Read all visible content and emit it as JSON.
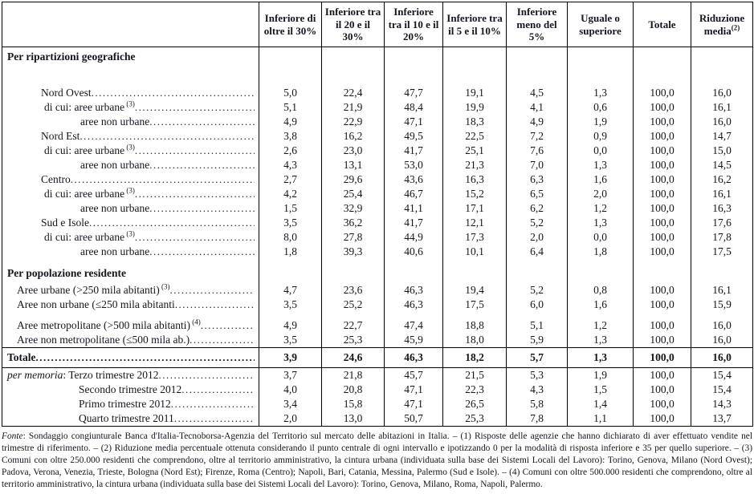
{
  "table": {
    "columns": [
      {
        "label": "Inferiore di oltre il 30%",
        "sup": ""
      },
      {
        "label": "Inferiore tra il 20 e il 30%",
        "sup": ""
      },
      {
        "label": "Inferiore tra il 10 e il 20%",
        "sup": ""
      },
      {
        "label": "Inferiore tra il 5 e il 10%",
        "sup": ""
      },
      {
        "label": "Inferiore meno del 5%",
        "sup": ""
      },
      {
        "label": "Uguale o superiore",
        "sup": ""
      },
      {
        "label": "Totale",
        "sup": ""
      },
      {
        "label": "Riduzione media",
        "sup": "(2)"
      }
    ],
    "rows": [
      {
        "variant": "section",
        "pad_bottom": true,
        "label": "Per ripartizioni geografiche",
        "indent": 6,
        "leader": false,
        "values": []
      },
      {
        "variant": "data",
        "label": "Nord Ovest",
        "indent": 48,
        "leader": true,
        "values": [
          "5,0",
          "22,4",
          "47,7",
          "19,1",
          "4,5",
          "1,3",
          "100,0",
          "16,0"
        ]
      },
      {
        "variant": "data",
        "label": "di cui: aree urbane",
        "sup": "(3)",
        "indent": 52,
        "leader": true,
        "values": [
          "5,1",
          "21,9",
          "48,4",
          "19,9",
          "4,1",
          "0,6",
          "100,0",
          "16,1"
        ]
      },
      {
        "variant": "data",
        "label": "aree non urbane",
        "indent": 97,
        "leader": true,
        "values": [
          "4,9",
          "22,9",
          "47,1",
          "18,3",
          "4,9",
          "1,9",
          "100,0",
          "16,0"
        ]
      },
      {
        "variant": "data",
        "label": "Nord Est",
        "indent": 48,
        "leader": true,
        "values": [
          "3,8",
          "16,2",
          "49,5",
          "22,5",
          "7,2",
          "0,9",
          "100,0",
          "14,7"
        ]
      },
      {
        "variant": "data",
        "label": "di cui: aree urbane",
        "sup": "(3)",
        "indent": 52,
        "leader": true,
        "values": [
          "2,6",
          "23,0",
          "41,7",
          "25,1",
          "7,6",
          "0,0",
          "100,0",
          "15,0"
        ]
      },
      {
        "variant": "data",
        "label": "aree non urbane",
        "indent": 97,
        "leader": true,
        "values": [
          "4,3",
          "13,1",
          "53,0",
          "21,3",
          "7,0",
          "1,3",
          "100,0",
          "14,5"
        ]
      },
      {
        "variant": "data",
        "label": "Centro",
        "indent": 48,
        "leader": true,
        "values": [
          "2,7",
          "29,6",
          "43,6",
          "16,3",
          "6,3",
          "1,6",
          "100,0",
          "16,2"
        ]
      },
      {
        "variant": "data",
        "label": "di cui: aree urbane",
        "sup": "(3)",
        "indent": 52,
        "leader": true,
        "values": [
          "4,2",
          "25,4",
          "46,7",
          "15,2",
          "6,5",
          "2,0",
          "100,0",
          "16,1"
        ]
      },
      {
        "variant": "data",
        "label": "aree non urbane",
        "indent": 97,
        "leader": true,
        "values": [
          "1,5",
          "32,9",
          "41,1",
          "17,1",
          "6,2",
          "1,2",
          "100,0",
          "16,3"
        ]
      },
      {
        "variant": "data",
        "label": "Sud e Isole",
        "indent": 48,
        "leader": true,
        "values": [
          "3,5",
          "36,2",
          "41,7",
          "12,1",
          "5,2",
          "1,3",
          "100,0",
          "17,6"
        ]
      },
      {
        "variant": "data",
        "label": "di cui: aree urbane",
        "sup": "(3)",
        "indent": 52,
        "leader": true,
        "values": [
          "8,0",
          "27,8",
          "44,9",
          "17,3",
          "2,0",
          "0,0",
          "100,0",
          "17,8"
        ]
      },
      {
        "variant": "data",
        "label": "aree non urbane",
        "indent": 97,
        "leader": true,
        "values": [
          "1,8",
          "39,3",
          "40,6",
          "10,1",
          "6,4",
          "1,8",
          "100,0",
          "17,5"
        ]
      },
      {
        "variant": "section",
        "label": "Per popolazione residente",
        "indent": 6,
        "leader": false,
        "values": []
      },
      {
        "variant": "data",
        "label": "Aree urbane (>250 mila abitanti)",
        "sup": "(3)",
        "indent": 18,
        "leader": true,
        "values": [
          "4,7",
          "23,6",
          "46,3",
          "19,4",
          "5,2",
          "0,8",
          "100,0",
          "16,1"
        ]
      },
      {
        "variant": "data",
        "label": "Aree non urbane (≤250 mila abitanti",
        "indent": 18,
        "leader": true,
        "values": [
          "3,5",
          "25,2",
          "46,3",
          "17,5",
          "6,0",
          "1,6",
          "100,0",
          "15,9"
        ]
      },
      {
        "variant": "data",
        "extra_top": true,
        "label": "Aree metropolitane (>500 mila abitanti)",
        "sup": "(4)",
        "indent": 18,
        "leader": true,
        "values": [
          "4,9",
          "22,7",
          "47,4",
          "18,8",
          "5,1",
          "1,2",
          "100,0",
          "16,0"
        ]
      },
      {
        "variant": "data",
        "label": "Aree non metropolitane (≤500 mila ab.)",
        "indent": 18,
        "leader": true,
        "values": [
          "3,5",
          "25,3",
          "45,9",
          "18,0",
          "5,9",
          "1,3",
          "100,0",
          "16,0"
        ]
      },
      {
        "variant": "total",
        "label": "Totale",
        "indent": 6,
        "leader": true,
        "values": [
          "3,9",
          "24,6",
          "46,3",
          "18,2",
          "5,7",
          "1,3",
          "100,0",
          "16,0"
        ]
      },
      {
        "variant": "data",
        "prefix_italic": "per memoria",
        "label": ": Terzo trimestre 2012 ",
        "indent": 6,
        "leader": true,
        "values": [
          "3,7",
          "21,8",
          "45,7",
          "21,5",
          "5,3",
          "1,9",
          "100,0",
          "15,4"
        ]
      },
      {
        "variant": "data",
        "label": "Secondo trimestre 2012 ",
        "indent": 95,
        "leader": true,
        "values": [
          "4,0",
          "20,8",
          "47,1",
          "22,3",
          "4,3",
          "1,5",
          "100,0",
          "15,4"
        ]
      },
      {
        "variant": "data",
        "label": "Primo trimestre 2012 ",
        "indent": 95,
        "leader": true,
        "values": [
          "3,4",
          "15,8",
          "47,1",
          "26,5",
          "5,8",
          "1,4",
          "100,0",
          "14,3"
        ]
      },
      {
        "variant": "data",
        "label": "Quarto trimestre 2011",
        "indent": 95,
        "leader": true,
        "values": [
          "2,0",
          "13,0",
          "50,7",
          "25,3",
          "7,8",
          "1,1",
          "100,0",
          "13,7"
        ]
      }
    ]
  },
  "footnote": {
    "fonte_label": "Fonte",
    "text": ": Sondaggio congiunturale Banca d'Italia-Tecnoborsa-Agenzia del Territorio sul mercato delle abitazioni in Italia. – (1) Risposte delle agenzie che hanno dichiarato di aver effettuato vendite nel trimestre di riferimento. – (2) Riduzione media percentuale ottenuta considerando il punto centrale di ogni intervallo e ipotizzando 0 per la modalità di risposta inferiore e 35 per quello superiore. – (3) Comuni con oltre 250.000 residenti che comprendono, oltre al territorio amministrativo, la cintura urbana (individuata sulla base dei Sistemi Locali del Lavoro): Torino, Genova, Milano (Nord Ovest); Padova, Verona, Venezia, Trieste, Bologna (Nord Est); Firenze, Roma (Centro); Napoli, Bari, Catania, Messina, Palermo (Sud e Isole). – (4) Comuni con oltre 500.000 residenti che comprendono, oltre al territorio amministrativo, la cintura urbana (individuata sulla base dei Sistemi Locali del Lavoro): Torino, Genova, Milano, Roma, Napoli, Palermo."
  }
}
